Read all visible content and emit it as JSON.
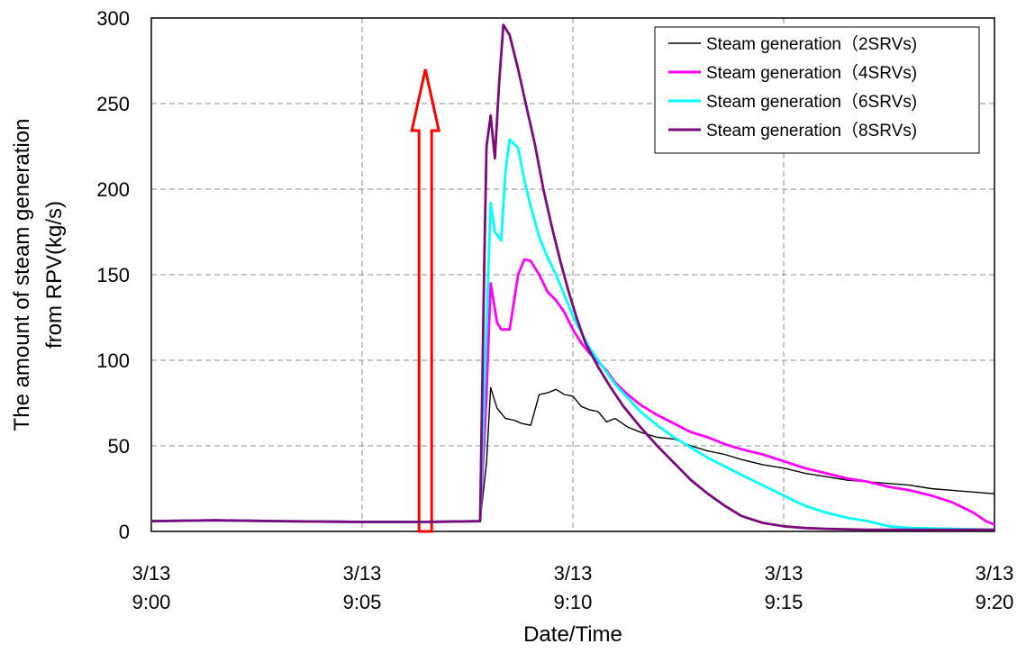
{
  "chart_data": {
    "type": "line",
    "title": "",
    "xlabel": "Date/Time",
    "ylabel_lines": [
      "The amount of steam generation",
      "from RPV(kg/s)"
    ],
    "x_range_minutes": [
      0,
      20
    ],
    "ylim": [
      0,
      300
    ],
    "y_ticks": [
      0,
      50,
      100,
      150,
      200,
      250,
      300
    ],
    "x_ticks": [
      {
        "date": "3/13",
        "time": "9:00",
        "minute": 0
      },
      {
        "date": "3/13",
        "time": "9:05",
        "minute": 5
      },
      {
        "date": "3/13",
        "time": "9:10",
        "minute": 10
      },
      {
        "date": "3/13",
        "time": "9:15",
        "minute": 15
      },
      {
        "date": "3/13",
        "time": "9:20",
        "minute": 20
      }
    ],
    "grid": true,
    "legend_position": "top-right",
    "series": [
      {
        "name": "Steam generation（2SRVs)",
        "color": "#000000",
        "points": [
          [
            0,
            6
          ],
          [
            1.5,
            6.5
          ],
          [
            3,
            6
          ],
          [
            5,
            5.5
          ],
          [
            6.5,
            5.5
          ],
          [
            7.8,
            6
          ],
          [
            7.95,
            40
          ],
          [
            8.05,
            84
          ],
          [
            8.2,
            72
          ],
          [
            8.4,
            66
          ],
          [
            8.6,
            65
          ],
          [
            8.8,
            63
          ],
          [
            9.0,
            62
          ],
          [
            9.2,
            80
          ],
          [
            9.4,
            81
          ],
          [
            9.6,
            83
          ],
          [
            9.8,
            80
          ],
          [
            10.0,
            79
          ],
          [
            10.2,
            73
          ],
          [
            10.4,
            71
          ],
          [
            10.6,
            70
          ],
          [
            10.8,
            64
          ],
          [
            11.0,
            66
          ],
          [
            11.3,
            61
          ],
          [
            11.6,
            58
          ],
          [
            12.0,
            55
          ],
          [
            12.4,
            54
          ],
          [
            12.8,
            50
          ],
          [
            13.2,
            47
          ],
          [
            13.6,
            45
          ],
          [
            14.0,
            42
          ],
          [
            14.5,
            39
          ],
          [
            15.0,
            37
          ],
          [
            15.5,
            34
          ],
          [
            16.0,
            32
          ],
          [
            16.5,
            30
          ],
          [
            17.0,
            29
          ],
          [
            17.5,
            28
          ],
          [
            18.0,
            27
          ],
          [
            18.5,
            25
          ],
          [
            19.0,
            24
          ],
          [
            19.5,
            23
          ],
          [
            20.0,
            22
          ]
        ]
      },
      {
        "name": "Steam generation（4SRVs)",
        "color": "#ff00ff",
        "points": [
          [
            0,
            6
          ],
          [
            1.5,
            6.5
          ],
          [
            3,
            6
          ],
          [
            5,
            5.5
          ],
          [
            6.5,
            5.5
          ],
          [
            7.8,
            6
          ],
          [
            7.95,
            80
          ],
          [
            8.05,
            145
          ],
          [
            8.2,
            122
          ],
          [
            8.3,
            118
          ],
          [
            8.5,
            118
          ],
          [
            8.7,
            150
          ],
          [
            8.85,
            159
          ],
          [
            9.0,
            158
          ],
          [
            9.2,
            150
          ],
          [
            9.4,
            140
          ],
          [
            9.6,
            135
          ],
          [
            9.8,
            128
          ],
          [
            10.0,
            118
          ],
          [
            10.2,
            110
          ],
          [
            10.4,
            104
          ],
          [
            10.6,
            99
          ],
          [
            10.8,
            94
          ],
          [
            11.0,
            87
          ],
          [
            11.3,
            80
          ],
          [
            11.6,
            74
          ],
          [
            12.0,
            68
          ],
          [
            12.4,
            63
          ],
          [
            12.8,
            58
          ],
          [
            13.2,
            55
          ],
          [
            13.6,
            51
          ],
          [
            14.0,
            48
          ],
          [
            14.5,
            45
          ],
          [
            15.0,
            41
          ],
          [
            15.5,
            37
          ],
          [
            16.0,
            34
          ],
          [
            16.5,
            31
          ],
          [
            17.0,
            29
          ],
          [
            17.5,
            26
          ],
          [
            18.0,
            24
          ],
          [
            18.5,
            21
          ],
          [
            19.0,
            17
          ],
          [
            19.5,
            11
          ],
          [
            19.8,
            6
          ],
          [
            20.0,
            4
          ]
        ]
      },
      {
        "name": "Steam generation（6SRVs)",
        "color": "#00ffff",
        "points": [
          [
            0,
            6
          ],
          [
            1.5,
            6.5
          ],
          [
            3,
            6
          ],
          [
            5,
            5.5
          ],
          [
            6.5,
            5.5
          ],
          [
            7.8,
            6
          ],
          [
            7.95,
            120
          ],
          [
            8.05,
            192
          ],
          [
            8.15,
            175
          ],
          [
            8.3,
            170
          ],
          [
            8.4,
            210
          ],
          [
            8.5,
            229
          ],
          [
            8.7,
            224
          ],
          [
            8.85,
            205
          ],
          [
            9.0,
            190
          ],
          [
            9.2,
            172
          ],
          [
            9.4,
            160
          ],
          [
            9.6,
            150
          ],
          [
            9.8,
            138
          ],
          [
            10.0,
            126
          ],
          [
            10.2,
            116
          ],
          [
            10.4,
            107
          ],
          [
            10.6,
            100
          ],
          [
            10.8,
            93
          ],
          [
            11.0,
            86
          ],
          [
            11.3,
            78
          ],
          [
            11.6,
            70
          ],
          [
            12.0,
            62
          ],
          [
            12.4,
            55
          ],
          [
            12.8,
            49
          ],
          [
            13.2,
            43
          ],
          [
            13.6,
            38
          ],
          [
            14.0,
            33
          ],
          [
            14.5,
            27
          ],
          [
            15.0,
            21
          ],
          [
            15.5,
            15
          ],
          [
            16.0,
            11
          ],
          [
            16.5,
            8
          ],
          [
            17.0,
            6
          ],
          [
            17.5,
            3
          ],
          [
            18.0,
            2
          ],
          [
            19.0,
            1.5
          ],
          [
            20.0,
            1
          ]
        ]
      },
      {
        "name": "Steam generation（8SRVs)",
        "color": "#7b0a7b",
        "points": [
          [
            0,
            6
          ],
          [
            1.5,
            6.5
          ],
          [
            3,
            6
          ],
          [
            5,
            5.5
          ],
          [
            6.5,
            5.5
          ],
          [
            7.8,
            6
          ],
          [
            7.9,
            160
          ],
          [
            7.95,
            225
          ],
          [
            8.05,
            243
          ],
          [
            8.15,
            218
          ],
          [
            8.25,
            262
          ],
          [
            8.35,
            296
          ],
          [
            8.5,
            290
          ],
          [
            8.7,
            270
          ],
          [
            8.9,
            248
          ],
          [
            9.1,
            226
          ],
          [
            9.3,
            200
          ],
          [
            9.5,
            178
          ],
          [
            9.7,
            158
          ],
          [
            9.9,
            140
          ],
          [
            10.1,
            124
          ],
          [
            10.3,
            110
          ],
          [
            10.6,
            96
          ],
          [
            10.9,
            84
          ],
          [
            11.2,
            73
          ],
          [
            11.6,
            61
          ],
          [
            12.0,
            50
          ],
          [
            12.4,
            40
          ],
          [
            12.8,
            30
          ],
          [
            13.2,
            22
          ],
          [
            13.6,
            15
          ],
          [
            14.0,
            9
          ],
          [
            14.5,
            5
          ],
          [
            15.0,
            3
          ],
          [
            15.5,
            2
          ],
          [
            16.0,
            1.5
          ],
          [
            17.0,
            1
          ],
          [
            20.0,
            1
          ]
        ]
      }
    ],
    "annotation_arrow": {
      "x_minute": 6.5,
      "y_base": 0,
      "y_tip": 270,
      "color": "#ff0000"
    }
  }
}
